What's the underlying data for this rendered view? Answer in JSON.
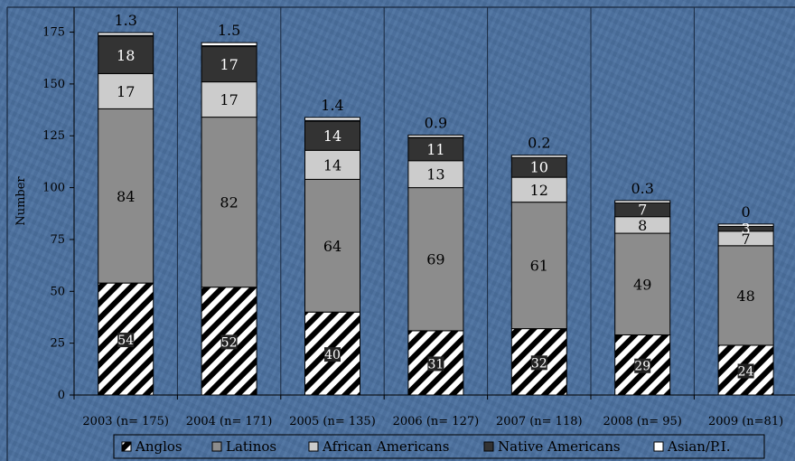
{
  "chart_data": {
    "type": "bar",
    "stacked": true,
    "ylabel": "Number",
    "ylim": [
      0,
      187
    ],
    "yticks": [
      0,
      25,
      50,
      75,
      100,
      125,
      150,
      175
    ],
    "grid": "vertical separators between categories",
    "legend_position": "bottom",
    "categories": [
      "2003 (n= 175)",
      "2004 (n= 171)",
      "2005 (n= 135)",
      "2006 (n= 127)",
      "2007 (n= 118)",
      "2008 (n= 95)",
      "2009 (n=81)"
    ],
    "series": [
      {
        "name": "Anglos",
        "values": [
          54,
          52,
          40,
          31,
          32,
          29,
          24
        ],
        "color": "#ffffff",
        "pattern": "diagonal-stripes"
      },
      {
        "name": "Latinos",
        "values": [
          84,
          82,
          64,
          69,
          61,
          49,
          48
        ],
        "color": "#8c8c8c"
      },
      {
        "name": "African Americans",
        "values": [
          17,
          17,
          14,
          13,
          12,
          8,
          7
        ],
        "color": "#cccccc"
      },
      {
        "name": "Native Americans",
        "values": [
          18,
          17,
          14,
          11,
          10,
          7,
          3
        ],
        "color": "#333333"
      },
      {
        "name": "Asian/P.I.",
        "values": [
          1.3,
          1.5,
          1.4,
          0.9,
          0.2,
          0.3,
          0
        ],
        "color": "#ffffff"
      }
    ],
    "data_labels": {
      "Anglos": [
        "54",
        "52",
        "40",
        "31",
        "32",
        "29",
        "24"
      ],
      "Latinos": [
        "84",
        "82",
        "64",
        "69",
        "61",
        "49",
        "48"
      ],
      "African Americans": [
        "17",
        "17",
        "14",
        "13",
        "12",
        "8",
        "7"
      ],
      "Native Americans": [
        "18",
        "17",
        "14",
        "11",
        "10",
        "7",
        "3"
      ],
      "Asian/P.I.": [
        "1.3",
        "1.5",
        "1.4",
        "0.9",
        "0.2",
        "0.3",
        "0"
      ]
    }
  }
}
